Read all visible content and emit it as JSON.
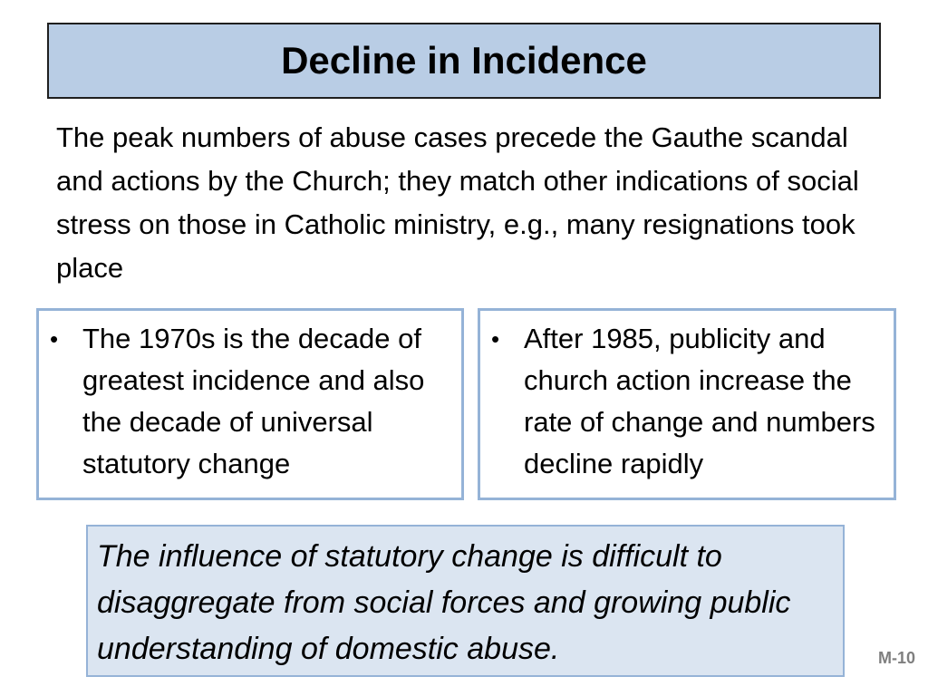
{
  "slide": {
    "title": "Decline in Incidence",
    "intro": "The peak numbers of abuse cases precede the Gauthe scandal and actions by the Church; they match other indications of social stress on those in Catholic ministry, e.g., many resignations took place",
    "left_box": {
      "bullet": "•",
      "text": "The 1970s is the decade of greatest incidence and also the decade of universal statutory change"
    },
    "right_box": {
      "bullet": "•",
      "text": "After 1985, publicity and church action increase the rate of change and numbers decline rapidly"
    },
    "note": "The influence of statutory change is difficult to disaggregate from social forces and growing public understanding of domestic abuse.",
    "slide_id": "M-10"
  },
  "colors": {
    "title_fill": "#b9cde5",
    "box_border": "#95b3d7",
    "note_fill": "#dbe5f1",
    "slide_id": "#7f7f7f"
  }
}
